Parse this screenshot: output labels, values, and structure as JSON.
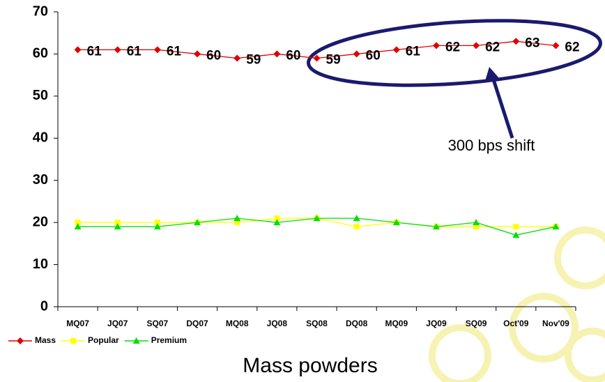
{
  "chart_data": {
    "type": "line",
    "title": "Mass powders",
    "annotation": "300 bps shift",
    "categories": [
      "MQ07",
      "JQ07",
      "SQ07",
      "DQ07",
      "MQ08",
      "JQ08",
      "SQ08",
      "DQ08",
      "MQ09",
      "JQ09",
      "SQ09",
      "Oct'09",
      "Nov'09"
    ],
    "series": [
      {
        "name": "Mass",
        "color": "#e00000",
        "marker": "diamond",
        "show_labels": true,
        "values": [
          61,
          61,
          61,
          60,
          59,
          60,
          59,
          60,
          61,
          62,
          62,
          63,
          62
        ]
      },
      {
        "name": "Popular",
        "color": "#ffff00",
        "marker": "square",
        "show_labels": false,
        "values": [
          20,
          20,
          20,
          20,
          20,
          21,
          21,
          19,
          20,
          19,
          19,
          19,
          19
        ]
      },
      {
        "name": "Premium",
        "color": "#00e000",
        "marker": "triangle",
        "show_labels": false,
        "values": [
          19,
          19,
          19,
          20,
          21,
          20,
          21,
          21,
          20,
          19,
          20,
          17,
          19
        ]
      }
    ],
    "ylim": [
      0,
      70
    ],
    "yticks": [
      0,
      10,
      20,
      30,
      40,
      50,
      60,
      70
    ],
    "grid": false
  }
}
